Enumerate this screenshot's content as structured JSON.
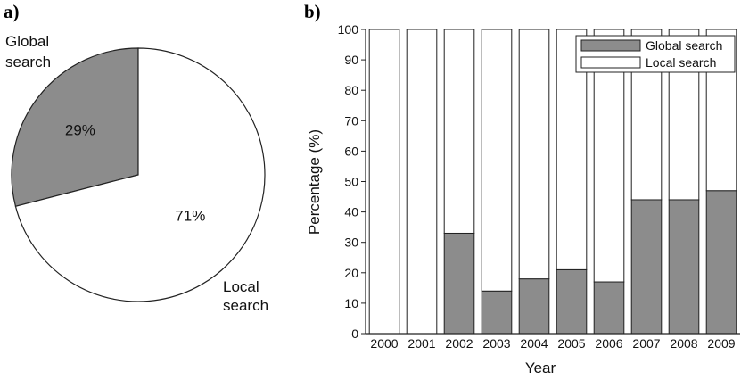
{
  "panels": {
    "a_label": "a)",
    "b_label": "b)"
  },
  "colors": {
    "global": "#8c8c8c",
    "local": "#ffffff",
    "stroke": "#222222"
  },
  "chart_data": [
    {
      "type": "pie",
      "slices": [
        {
          "name": "Global search",
          "value": 29,
          "label": "29%",
          "color": "#8c8c8c",
          "outer_label": [
            "Global",
            "search"
          ]
        },
        {
          "name": "Local search",
          "value": 71,
          "label": "71%",
          "color": "#ffffff",
          "outer_label": [
            "Local",
            "search"
          ]
        }
      ]
    },
    {
      "type": "bar",
      "stacked": true,
      "categories": [
        "2000",
        "2001",
        "2002",
        "2003",
        "2004",
        "2005",
        "2006",
        "2007",
        "2008",
        "2009"
      ],
      "series": [
        {
          "name": "Global search",
          "color": "#8c8c8c",
          "values": [
            0,
            0,
            33,
            14,
            18,
            21,
            17,
            44,
            44,
            47
          ]
        },
        {
          "name": "Local search",
          "color": "#ffffff",
          "values": [
            100,
            100,
            67,
            86,
            82,
            79,
            83,
            56,
            56,
            53
          ]
        }
      ],
      "xlabel": "Year",
      "ylabel": "Percentage (%)",
      "ylim": [
        0,
        100
      ],
      "yticks": [
        0,
        10,
        20,
        30,
        40,
        50,
        60,
        70,
        80,
        90,
        100
      ],
      "grid": false,
      "legend_position": "top-right"
    }
  ]
}
